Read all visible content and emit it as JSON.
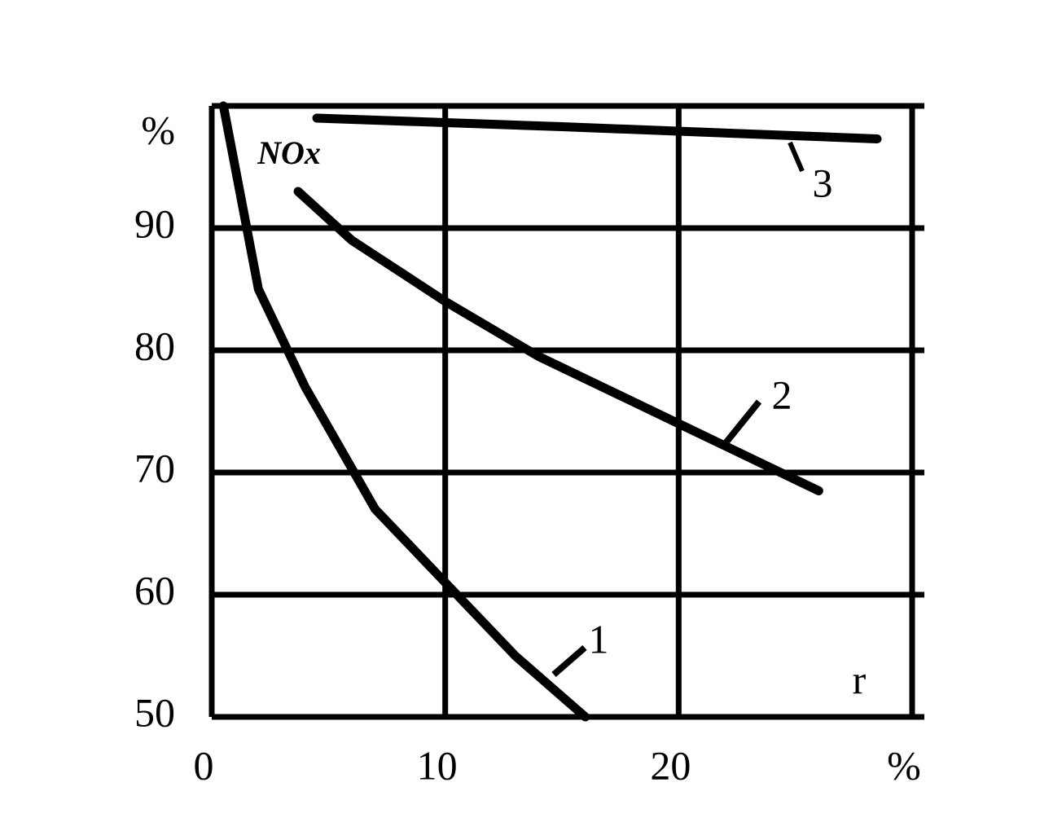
{
  "chart_data": {
    "type": "line",
    "x_label": "r",
    "annotation": "NOx",
    "xlim": [
      0,
      30
    ],
    "ylim": [
      50,
      100
    ],
    "xticks": [
      0,
      10,
      20,
      {
        "value": 30,
        "label": "%"
      }
    ],
    "yticks": [
      50,
      60,
      70,
      80,
      90,
      {
        "value": 100,
        "label": "%"
      }
    ],
    "grid": true,
    "series": [
      {
        "name": "1",
        "color": "#000000",
        "x": [
          0.5,
          2,
          4,
          7,
          10,
          13,
          16
        ],
        "values": [
          100,
          85,
          77,
          67,
          61,
          55,
          50
        ]
      },
      {
        "name": "2",
        "color": "#000000",
        "x": [
          3.7,
          6,
          10,
          14,
          20,
          26
        ],
        "values": [
          93,
          89,
          84,
          79.5,
          74,
          68.5
        ]
      },
      {
        "name": "3",
        "color": "#000000",
        "x": [
          4.5,
          15,
          28.5
        ],
        "values": [
          99,
          98.3,
          97.3
        ]
      }
    ]
  }
}
